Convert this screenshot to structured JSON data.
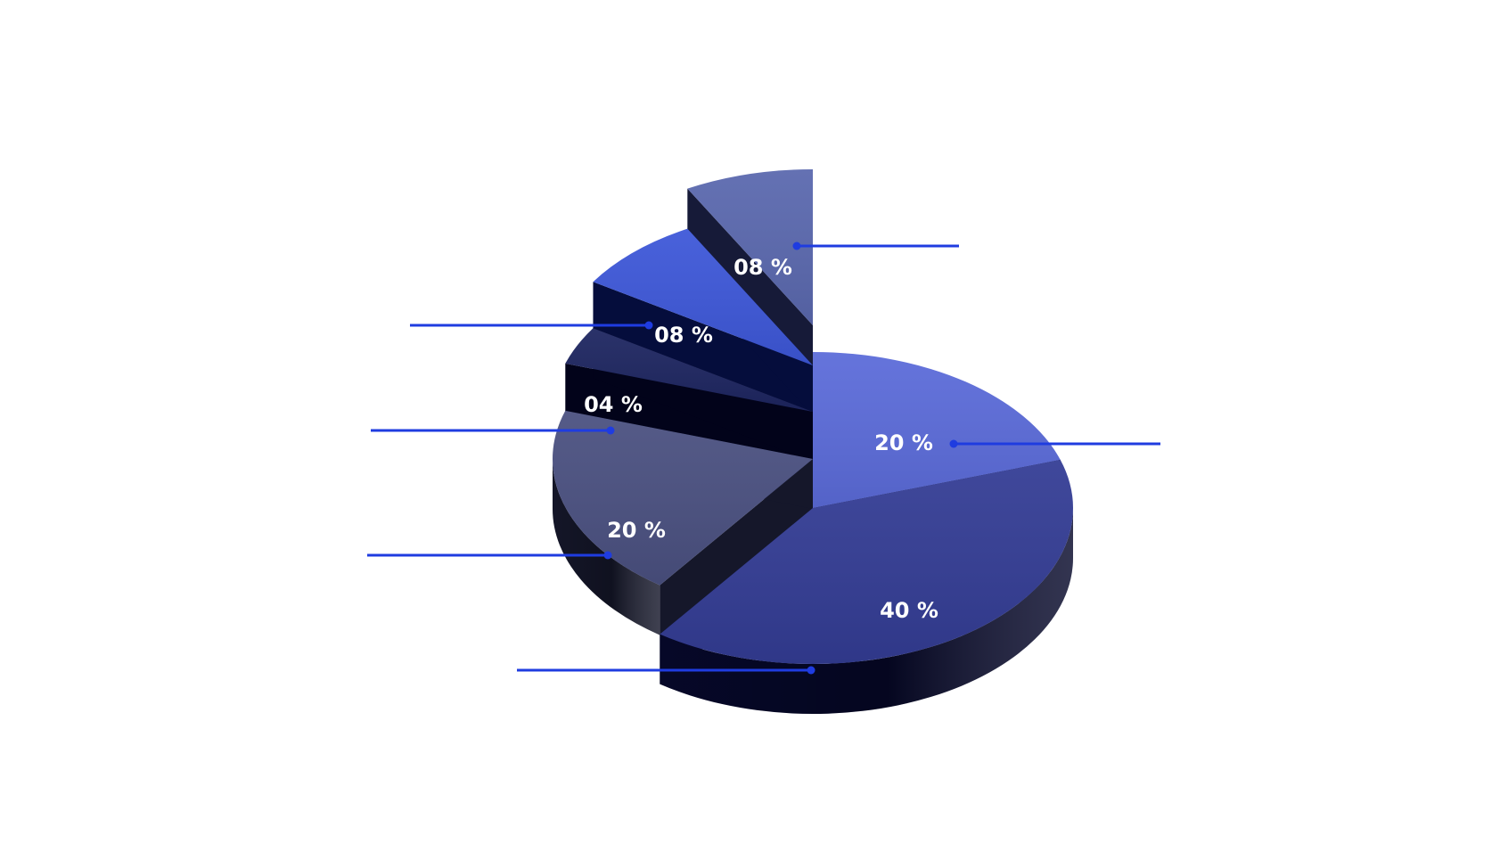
{
  "chart_data": {
    "type": "pie",
    "style": "3d-exploded",
    "slices": [
      {
        "label": "20 %",
        "value": 20,
        "top_color": "#5b6bd9",
        "side_color": "#0d1233"
      },
      {
        "label": "40 %",
        "value": 40,
        "top_color": "#333c94",
        "side_color": "#06082a"
      },
      {
        "label": "20 %",
        "value": 20,
        "top_color": "#4a5080",
        "side_color": "#15172a"
      },
      {
        "label": "04 %",
        "value": 4,
        "top_color": "#1d2560",
        "side_color": "#02031a"
      },
      {
        "label": "08 %",
        "value": 8,
        "top_color": "#3d57d8",
        "side_color": "#050d3c"
      },
      {
        "label": "08 %",
        "value": 8,
        "top_color": "#5a68ae",
        "side_color": "#161a38"
      }
    ],
    "leader_color": "#1f3ce0",
    "legend": "none"
  }
}
